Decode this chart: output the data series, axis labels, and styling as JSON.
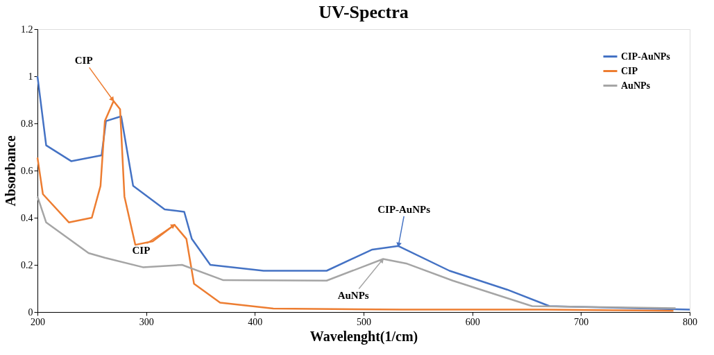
{
  "chart_data": {
    "type": "line",
    "title": "UV-Spectra",
    "xlabel": "Wavelenght(1/cm)",
    "ylabel": "Absorbance",
    "xlim": [
      200,
      800
    ],
    "xticks": [
      200,
      300,
      400,
      500,
      600,
      700,
      800
    ],
    "ylim": [
      0,
      1.2
    ],
    "yticks": [
      0,
      0.2,
      0.4,
      0.6,
      0.8,
      1,
      1.2
    ],
    "grid": false,
    "legend": "top right",
    "marker": "none",
    "line_style": "solid",
    "series": [
      {
        "name": "CIP-AuNPs",
        "color": "#4472c4",
        "x": [
          200,
          208,
          231,
          259,
          263,
          277,
          288,
          317,
          335,
          342,
          359,
          408,
          466,
          508,
          532,
          579,
          632,
          671,
          800
        ],
        "values": [
          1.0,
          0.707,
          0.64,
          0.665,
          0.81,
          0.83,
          0.535,
          0.435,
          0.425,
          0.31,
          0.2,
          0.175,
          0.175,
          0.265,
          0.28,
          0.175,
          0.095,
          0.025,
          0.01
        ]
      },
      {
        "name": "CIP",
        "color": "#ed7d31",
        "x": [
          200,
          205,
          229,
          250,
          258,
          262,
          270,
          276,
          280,
          290,
          306,
          326,
          337,
          344,
          368,
          417,
          536,
          664,
          785
        ],
        "values": [
          0.655,
          0.5,
          0.38,
          0.4,
          0.535,
          0.81,
          0.895,
          0.86,
          0.49,
          0.285,
          0.3,
          0.37,
          0.31,
          0.12,
          0.04,
          0.015,
          0.01,
          0.01,
          0.005
        ]
      },
      {
        "name": "AuNPs",
        "color": "#a5a5a5",
        "x": [
          200,
          208,
          247,
          262,
          297,
          333,
          371,
          466,
          518,
          540,
          582,
          655,
          787
        ],
        "values": [
          0.49,
          0.38,
          0.25,
          0.23,
          0.19,
          0.2,
          0.135,
          0.133,
          0.225,
          0.205,
          0.133,
          0.025,
          0.016
        ]
      }
    ],
    "annotations": [
      {
        "text": "CIP",
        "x": 270,
        "y": 0.895
      },
      {
        "text": "CIP",
        "x": 326,
        "y": 0.37
      },
      {
        "text": "CIP-AuNPs",
        "x": 532,
        "y": 0.28
      },
      {
        "text": "AuNPs",
        "x": 518,
        "y": 0.225
      }
    ]
  }
}
